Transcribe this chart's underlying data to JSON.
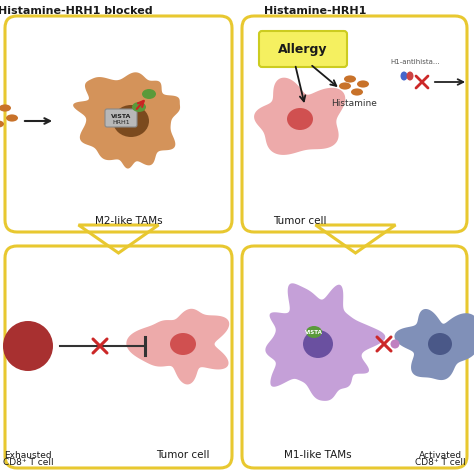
{
  "bg_color": "#ffffff",
  "border_color": "#E8C830",
  "title_left": "Histamine-HRH1 blocked",
  "title_right": "Histamine-HRH1",
  "top_left_label": "M2-like TAMs",
  "top_right_label1": "Allergy",
  "top_right_label2": "Tumor cell",
  "top_right_label3": "Histamine",
  "bottom_left_label1a": "Exhausted",
  "bottom_left_label1b": "CD8⁺ T cell",
  "bottom_left_label2": "Tumor cell",
  "bottom_right_label1": "M1-like TAMs",
  "bottom_right_label2a": "Activated",
  "bottom_right_label2b": "CD8⁺ T cell",
  "vista_label": "VISTA",
  "hrh1_label": "HRH1",
  "histamine_color": "#C8722A",
  "macrophage_color_top": "#D4935A",
  "macrophage_nucleus_top": "#7B4A1E",
  "vista_green": "#5A9A3A",
  "tumor_cell_color_top": "#EDAAAA",
  "tumor_nucleus_top": "#D05050",
  "t_cell_color_bottom_left": "#A83030",
  "macrophage_color_bottom": "#C5A0D8",
  "macrophage_nucleus_bottom": "#6A50A0",
  "t_cell_color_bottom_right": "#8090B8",
  "t_cell_nucleus_right": "#4A5888",
  "allergy_box_color": "#F5F060",
  "arrow_color_big": "#E8C830",
  "red_x_color": "#CC2828",
  "h1_label": "H1-antihista..."
}
